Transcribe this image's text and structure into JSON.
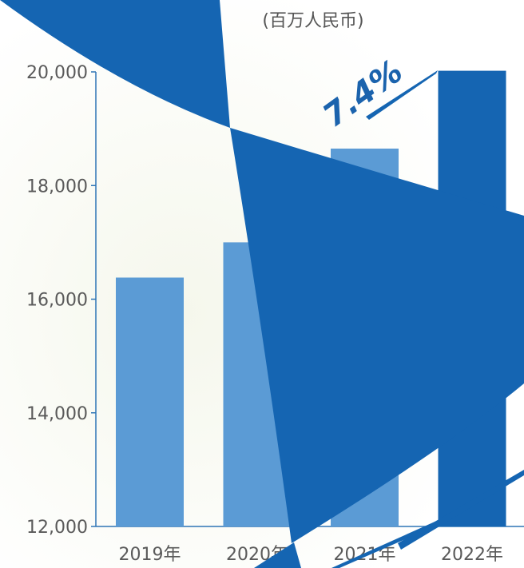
{
  "chart_data": {
    "type": "bar",
    "unit_label": "(百万人民币)",
    "categories": [
      "2019年",
      "2020年",
      "2021年",
      "2022年"
    ],
    "values": [
      16380,
      17000,
      18650,
      20020
    ],
    "ylim": [
      12000,
      20000
    ],
    "yticks": [
      12000,
      14000,
      16000,
      18000,
      20000
    ],
    "ytick_labels": [
      "12,000",
      "14,000",
      "16,000",
      "18,000",
      "20,000"
    ],
    "growth_label": "7.4%",
    "grid": false,
    "legend": "none",
    "colors": {
      "bar": "#5b9bd5",
      "highlight_bar": "#1565b2",
      "axis": "#2e75b6",
      "accent_shape": "#1565b2",
      "text": "#5a5a5a"
    }
  }
}
